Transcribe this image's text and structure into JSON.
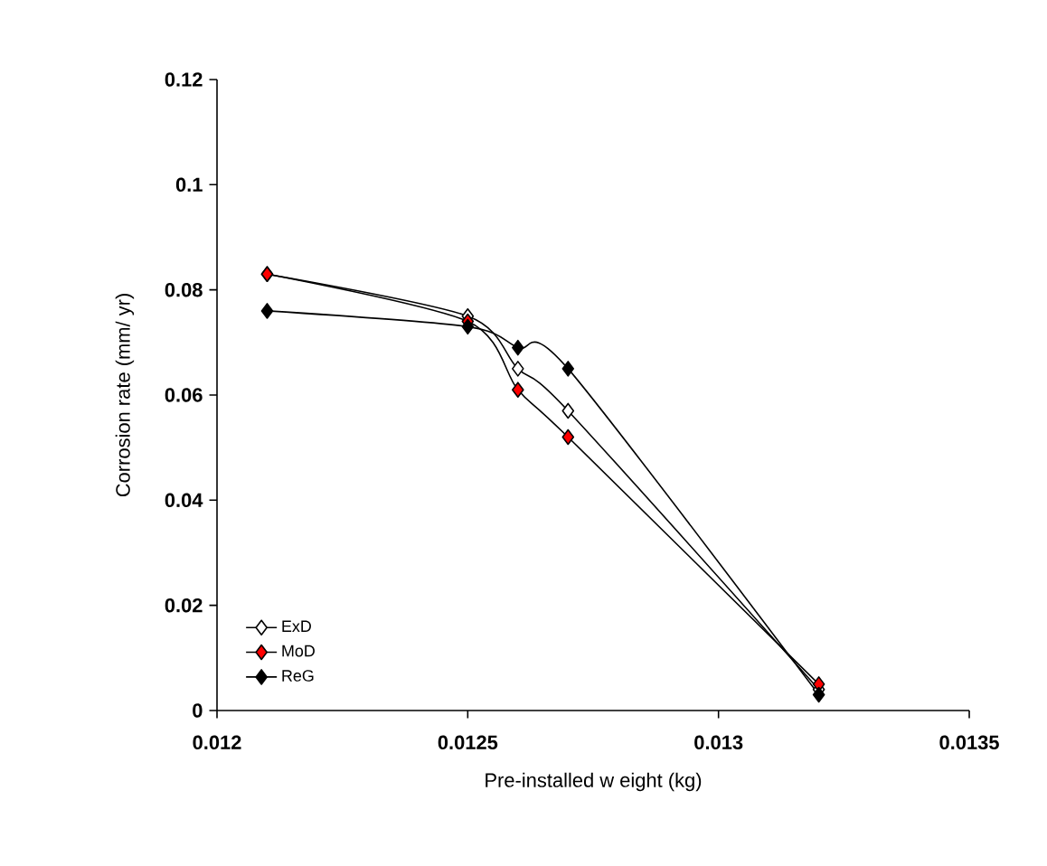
{
  "chart_data": {
    "type": "line",
    "xlabel": "Pre-installed w eight (kg)",
    "ylabel": "Corrosion rate (mm/ yr)",
    "x": [
      0.0121,
      0.0125,
      0.0126,
      0.0127,
      0.0132
    ],
    "series": [
      {
        "name": "ExD",
        "color": "#ffffff",
        "values": [
          0.083,
          0.075,
          0.065,
          0.057,
          0.004
        ]
      },
      {
        "name": "MoD",
        "color": "#ff0000",
        "values": [
          0.083,
          0.074,
          0.061,
          0.052,
          0.005
        ]
      },
      {
        "name": "ReG",
        "color": "#000000",
        "values": [
          0.076,
          0.073,
          0.069,
          0.065,
          0.003
        ]
      }
    ],
    "xlim": [
      0.012,
      0.0135
    ],
    "xticks": [
      0.012,
      0.0125,
      0.013,
      0.0135
    ],
    "ylim": [
      0,
      0.12
    ],
    "yticks": [
      0,
      0.02,
      0.04,
      0.06,
      0.08,
      0.1,
      0.12
    ],
    "grid": false,
    "legend": "bottom left",
    "marker": "diamond",
    "line_style": "solid"
  }
}
